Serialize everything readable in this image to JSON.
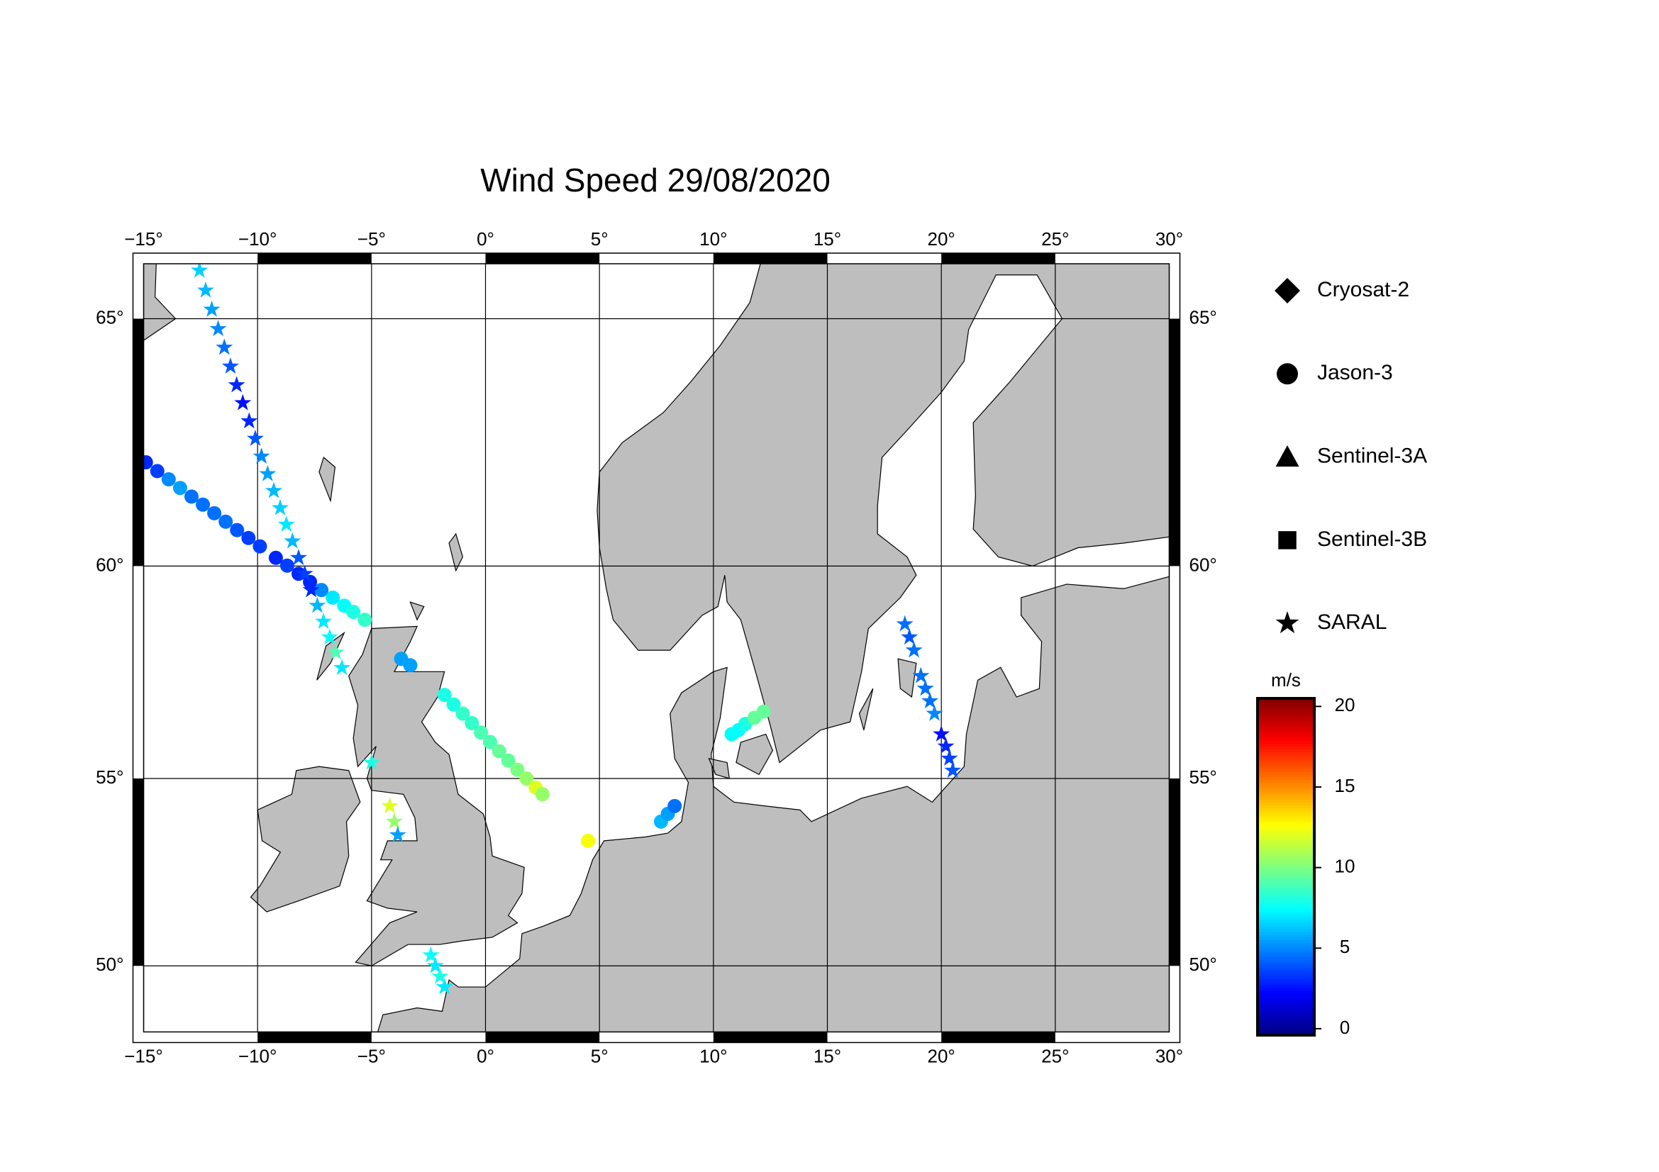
{
  "chart_data": {
    "type": "map",
    "title": "Wind Speed 29/08/2020",
    "xlim": [
      -15,
      30
    ],
    "ylim": [
      48.1,
      66.0
    ],
    "xticks": [
      {
        "value": -15,
        "label": "−15°"
      },
      {
        "value": -10,
        "label": "−10°"
      },
      {
        "value": -5,
        "label": "−5°"
      },
      {
        "value": 0,
        "label": "0°"
      },
      {
        "value": 5,
        "label": "5°"
      },
      {
        "value": 10,
        "label": "10°"
      },
      {
        "value": 15,
        "label": "15°"
      },
      {
        "value": 20,
        "label": "20°"
      },
      {
        "value": 25,
        "label": "25°"
      },
      {
        "value": 30,
        "label": "30°"
      }
    ],
    "yticks": [
      {
        "value": 50,
        "label": "50°"
      },
      {
        "value": 55,
        "label": "55°"
      },
      {
        "value": 60,
        "label": "60°"
      },
      {
        "value": 65,
        "label": "65°"
      }
    ],
    "grid": true,
    "land_color": "#bebebe",
    "colorbar": {
      "label": "m/s",
      "colormap": "jet",
      "clim": [
        -0.4,
        20.5
      ],
      "ticks": [
        0,
        5,
        10,
        15,
        20
      ]
    },
    "series": [
      {
        "name": "Cryosat-2",
        "marker": "diamond",
        "x": [],
        "y": [],
        "values": []
      },
      {
        "name": "Jason-3",
        "marker": "circle",
        "x": [
          -14.9,
          -14.4,
          -13.9,
          -13.4,
          -12.9,
          -12.4,
          -11.9,
          -11.4,
          -10.9,
          -10.4,
          -9.9,
          -9.2,
          -8.7,
          -8.2,
          -7.7,
          -7.2,
          -6.7,
          -6.2,
          -5.8,
          -5.3,
          -3.7,
          -3.3,
          -1.8,
          -1.4,
          -1.0,
          -0.6,
          -0.2,
          0.2,
          0.6,
          1.0,
          1.4,
          1.8,
          2.2,
          2.5,
          4.5,
          7.7,
          8.0,
          8.3,
          10.8,
          11.1,
          11.4,
          11.8,
          12.2
        ],
        "y": [
          62.2,
          62.02,
          61.85,
          61.67,
          61.49,
          61.32,
          61.14,
          60.96,
          60.78,
          60.61,
          60.43,
          60.18,
          60.01,
          59.83,
          59.65,
          59.47,
          59.3,
          59.12,
          58.98,
          58.8,
          57.9,
          57.75,
          57.05,
          56.82,
          56.6,
          56.37,
          56.14,
          55.91,
          55.68,
          55.45,
          55.22,
          55.0,
          54.77,
          54.6,
          53.4,
          53.9,
          54.1,
          54.3,
          56.1,
          56.2,
          56.35,
          56.5,
          56.65
        ],
        "values": [
          3,
          3.5,
          5,
          5.5,
          4.5,
          4.5,
          4.5,
          4.5,
          4,
          3.5,
          3.5,
          3,
          3.5,
          3,
          3,
          5,
          7,
          7.5,
          8,
          8.5,
          5.5,
          5.5,
          8,
          8,
          8.5,
          8.5,
          9,
          9,
          9.5,
          9.5,
          10,
          10.5,
          12,
          10.5,
          12.5,
          6,
          5.5,
          4.5,
          7.5,
          7.5,
          8,
          9.5,
          9.5
        ]
      },
      {
        "name": "Sentinel-3A",
        "marker": "triangle",
        "x": [],
        "y": [],
        "values": []
      },
      {
        "name": "Sentinel-3B",
        "marker": "square",
        "x": [],
        "y": [],
        "values": []
      },
      {
        "name": "SARAL",
        "marker": "star",
        "x": [
          -12.55,
          -12.28,
          -12.01,
          -11.73,
          -11.46,
          -11.19,
          -10.92,
          -10.65,
          -10.37,
          -10.1,
          -9.83,
          -9.56,
          -9.29,
          -9.01,
          -8.74,
          -8.47,
          -8.2,
          -7.93,
          -7.65,
          -7.38,
          -7.11,
          -6.84,
          -6.57,
          -6.3,
          -5.0,
          -4.2,
          -4.0,
          -3.85,
          -2.4,
          -2.2,
          -2.0,
          -1.8,
          18.4,
          18.6,
          18.8,
          19.1,
          19.3,
          19.5,
          19.7,
          20.0,
          20.2,
          20.35,
          20.5
        ],
        "y": [
          65.88,
          65.52,
          65.17,
          64.81,
          64.46,
          64.1,
          63.74,
          63.39,
          63.03,
          62.68,
          62.32,
          61.96,
          61.61,
          61.25,
          60.9,
          60.54,
          60.18,
          59.83,
          59.47,
          59.12,
          58.76,
          58.4,
          58.05,
          57.69,
          55.4,
          54.3,
          53.9,
          53.55,
          50.3,
          50.0,
          49.7,
          49.4,
          58.7,
          58.4,
          58.1,
          57.5,
          57.2,
          56.9,
          56.6,
          56.1,
          55.8,
          55.5,
          55.2
        ],
        "values": [
          6.5,
          6,
          5.5,
          5,
          4.5,
          4,
          3,
          2.5,
          3,
          4,
          5,
          5.5,
          6,
          6.5,
          7,
          6,
          4,
          3.5,
          3,
          6,
          7,
          7.5,
          9,
          7,
          8,
          12,
          10.5,
          5.5,
          7.5,
          7,
          8,
          7,
          4.5,
          4,
          4.5,
          4.5,
          4.5,
          4.5,
          5,
          2.5,
          3,
          3.5,
          4
        ]
      }
    ]
  }
}
